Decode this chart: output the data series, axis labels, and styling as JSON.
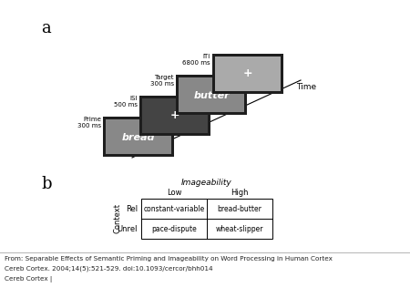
{
  "label_a": "a",
  "label_b": "b",
  "prime_label_line1": "Prime",
  "prime_label_line2": "300 ms",
  "isi_label_line1": "ISI",
  "isi_label_line2": "500 ms",
  "target_label_line1": "Target",
  "target_label_line2": "300 ms",
  "iti_label_line1": "ITI",
  "iti_label_line2": "6800 ms",
  "time_label": "Time",
  "prime_word": "bread",
  "isi_word": "+",
  "target_word": "butter",
  "iti_word": "+",
  "imageability_label": "Imageability",
  "low_label": "Low",
  "high_label": "High",
  "context_label": "Context",
  "rel_label": "Rel",
  "unrel_label": "Unrel",
  "cell_ll": "constant-variable",
  "cell_lh": "bread-butter",
  "cell_ul": "pace-dispute",
  "cell_uh": "wheat-slipper",
  "footer1": "From: Separable Effects of Semantic Priming and Imageability on Word Processing in Human Cortex",
  "footer2": "Cereb Cortex. 2004;14(5):521-529. doi:10.1093/cercor/bhh014",
  "footer3": "Cereb Cortex |",
  "outer_box_color": "#1e1e1e",
  "prime_inner_color": "#888888",
  "isi_inner_color": "#444444",
  "target_inner_color": "#888888",
  "iti_inner_color": "#aaaaaa",
  "text_color_white": "#ffffff",
  "text_color_black": "#000000",
  "footer_color": "#222222",
  "sep_line_color": "#bbbbbb"
}
